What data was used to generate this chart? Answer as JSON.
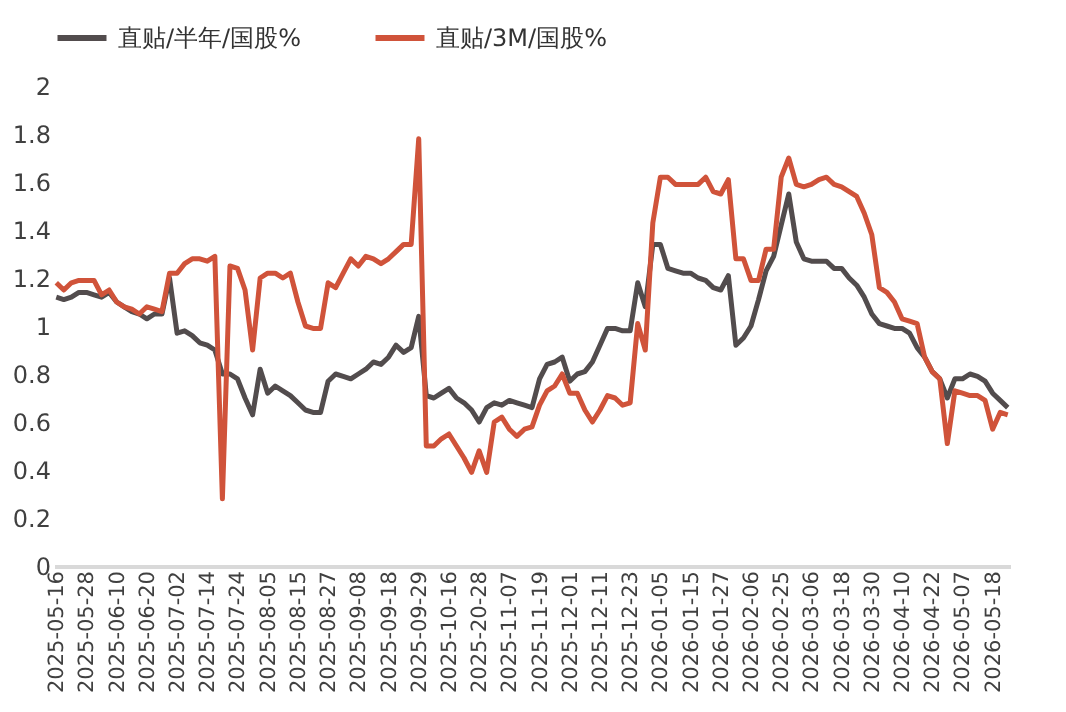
{
  "chart_data": {
    "type": "line",
    "categories": [
      "2025-05-16",
      null,
      null,
      null,
      "2025-05-28",
      null,
      null,
      null,
      "2025-06-10",
      null,
      null,
      null,
      "2025-06-20",
      null,
      null,
      null,
      "2025-07-02",
      null,
      null,
      null,
      "2025-07-14",
      null,
      null,
      null,
      "2025-07-24",
      null,
      null,
      null,
      "2025-08-05",
      null,
      null,
      null,
      "2025-08-15",
      null,
      null,
      null,
      "2025-08-27",
      null,
      null,
      null,
      "2025-09-08",
      null,
      null,
      null,
      "2025-09-18",
      null,
      null,
      null,
      "2025-09-29",
      null,
      null,
      null,
      "2025-10-16",
      null,
      null,
      null,
      "2025-20-28",
      null,
      null,
      null,
      "2025-11-07",
      null,
      null,
      null,
      "2025-11-19",
      null,
      null,
      null,
      "2025-12-01",
      null,
      null,
      null,
      "2025-12-11",
      null,
      null,
      null,
      "2025-12-23",
      null,
      null,
      null,
      "2026-01-05",
      null,
      null,
      null,
      "2026-01-15",
      null,
      null,
      null,
      "2026-01-27",
      null,
      null,
      null,
      "2026-02-06",
      null,
      null,
      null,
      "2026-02-25",
      null,
      null,
      null,
      "2026-03-06",
      null,
      null,
      null,
      "2026-03-18",
      null,
      null,
      null,
      "2026-03-30",
      null,
      null,
      null,
      "2026-04-10",
      null,
      null,
      null,
      "2026-04-22",
      null,
      null,
      null,
      "2026-05-07",
      null,
      null,
      null,
      "2026-05-18",
      null,
      null
    ],
    "series": [
      {
        "name": "直贴/半年/国股%",
        "color": "#524c4d",
        "values": [
          1.12,
          1.11,
          1.12,
          1.14,
          1.14,
          1.13,
          1.12,
          1.14,
          1.1,
          1.08,
          1.06,
          1.05,
          1.03,
          1.05,
          1.05,
          1.2,
          0.97,
          0.98,
          0.96,
          0.93,
          0.92,
          0.9,
          0.8,
          0.8,
          0.78,
          0.7,
          0.63,
          0.82,
          0.72,
          0.75,
          0.73,
          0.71,
          0.68,
          0.65,
          0.64,
          0.64,
          0.77,
          0.8,
          0.79,
          0.78,
          0.8,
          0.82,
          0.85,
          0.84,
          0.87,
          0.92,
          0.89,
          0.91,
          1.04,
          0.71,
          0.7,
          0.72,
          0.74,
          0.7,
          0.68,
          0.65,
          0.6,
          0.66,
          0.68,
          0.67,
          0.69,
          0.68,
          0.67,
          0.66,
          0.78,
          0.84,
          0.85,
          0.87,
          0.77,
          0.8,
          0.81,
          0.85,
          0.92,
          0.99,
          0.99,
          0.98,
          0.98,
          1.18,
          1.08,
          1.34,
          1.34,
          1.24,
          1.23,
          1.22,
          1.22,
          1.2,
          1.19,
          1.16,
          1.15,
          1.21,
          0.92,
          0.95,
          1.0,
          1.11,
          1.23,
          1.29,
          1.42,
          1.55,
          1.35,
          1.28,
          1.27,
          1.27,
          1.27,
          1.24,
          1.24,
          1.2,
          1.17,
          1.12,
          1.05,
          1.01,
          1.0,
          0.99,
          0.99,
          0.97,
          0.91,
          0.87,
          0.81,
          0.78,
          0.7,
          0.78,
          0.78,
          0.8,
          0.79,
          0.77,
          0.72,
          0.69,
          0.66
        ]
      },
      {
        "name": "直贴/3M/国股%",
        "color": "#d0533a",
        "values": [
          1.18,
          1.15,
          1.18,
          1.19,
          1.19,
          1.19,
          1.13,
          1.15,
          1.1,
          1.08,
          1.07,
          1.05,
          1.08,
          1.07,
          1.06,
          1.22,
          1.22,
          1.26,
          1.28,
          1.28,
          1.27,
          1.29,
          0.28,
          1.25,
          1.24,
          1.15,
          0.9,
          1.2,
          1.22,
          1.22,
          1.2,
          1.22,
          1.1,
          1.0,
          0.99,
          0.99,
          1.18,
          1.16,
          1.22,
          1.28,
          1.25,
          1.29,
          1.28,
          1.26,
          1.28,
          1.31,
          1.34,
          1.34,
          1.78,
          0.5,
          0.5,
          0.53,
          0.55,
          0.5,
          0.45,
          0.39,
          0.48,
          0.39,
          0.6,
          0.62,
          0.57,
          0.54,
          0.57,
          0.58,
          0.67,
          0.73,
          0.75,
          0.8,
          0.72,
          0.72,
          0.65,
          0.6,
          0.65,
          0.71,
          0.7,
          0.67,
          0.68,
          1.01,
          0.9,
          1.43,
          1.62,
          1.62,
          1.59,
          1.59,
          1.59,
          1.59,
          1.62,
          1.56,
          1.55,
          1.61,
          1.28,
          1.28,
          1.19,
          1.19,
          1.32,
          1.32,
          1.62,
          1.7,
          1.59,
          1.58,
          1.59,
          1.61,
          1.62,
          1.59,
          1.58,
          1.56,
          1.54,
          1.47,
          1.38,
          1.16,
          1.14,
          1.1,
          1.03,
          1.02,
          1.01,
          0.87,
          0.81,
          0.78,
          0.51,
          0.73,
          0.72,
          0.71,
          0.71,
          0.69,
          0.57,
          0.64,
          0.63
        ]
      }
    ],
    "ylim": [
      0,
      2
    ],
    "yticks": [
      0,
      0.2,
      0.4,
      0.6,
      0.8,
      1,
      1.2,
      1.4,
      1.6,
      1.8,
      2
    ],
    "grid": false,
    "legend": "top",
    "marker": "none",
    "line_style": "solid"
  }
}
